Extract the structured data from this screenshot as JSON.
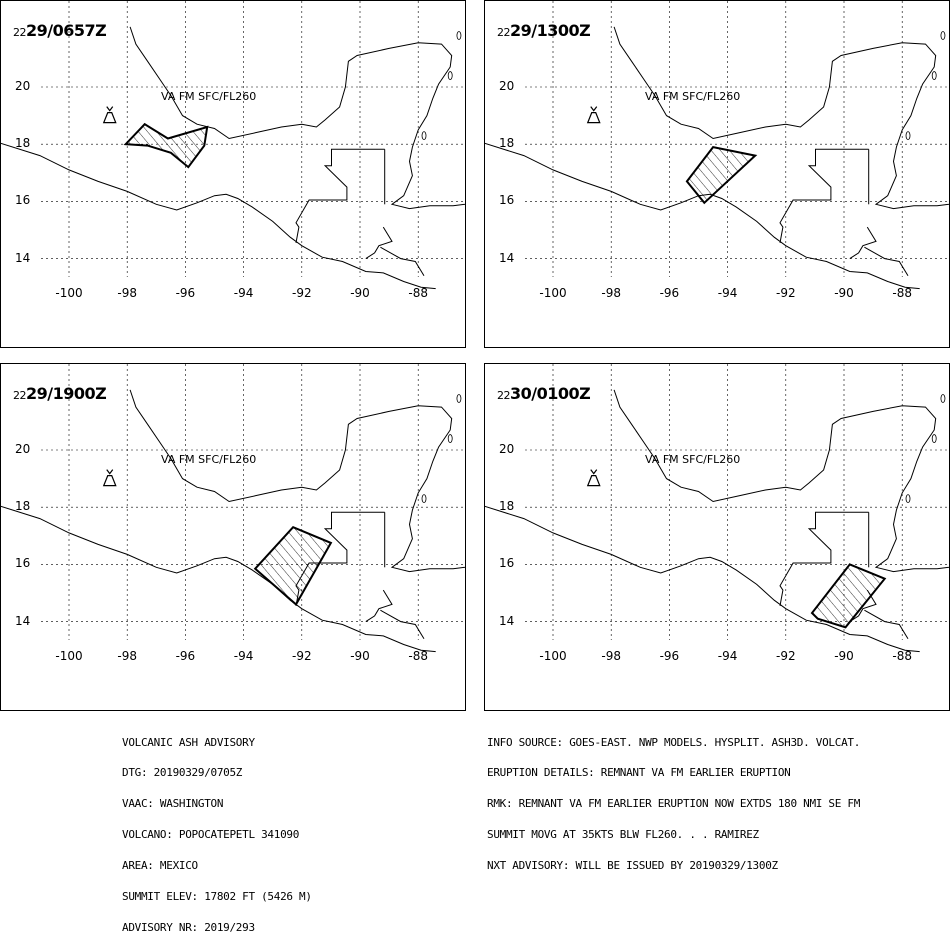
{
  "panels": [
    {
      "day": "22",
      "time": "29/0657Z",
      "va_label": "VA FM SFC/FL260",
      "polygon": [
        [
          -98.05,
          18.0
        ],
        [
          -97.4,
          18.7
        ],
        [
          -96.6,
          18.2
        ],
        [
          -95.25,
          18.6
        ],
        [
          -95.35,
          17.95
        ],
        [
          -95.9,
          17.2
        ],
        [
          -96.5,
          17.7
        ],
        [
          -97.3,
          17.95
        ]
      ]
    },
    {
      "day": "22",
      "time": "29/1300Z",
      "va_label": "VA FM SFC/FL260",
      "polygon": [
        [
          -94.5,
          17.9
        ],
        [
          -93.05,
          17.6
        ],
        [
          -94.8,
          15.95
        ],
        [
          -95.4,
          16.7
        ]
      ]
    },
    {
      "day": "22",
      "time": "29/1900Z",
      "va_label": "VA FM SFC/FL260",
      "polygon": [
        [
          -92.3,
          17.3
        ],
        [
          -91.0,
          16.75
        ],
        [
          -92.2,
          14.6
        ],
        [
          -93.6,
          15.85
        ]
      ]
    },
    {
      "day": "22",
      "time": "30/0100Z",
      "va_label": "VA FM SFC/FL260",
      "polygon": [
        [
          -89.8,
          16.0
        ],
        [
          -88.6,
          15.5
        ],
        [
          -89.95,
          13.8
        ],
        [
          -90.9,
          14.1
        ],
        [
          -91.1,
          14.3
        ]
      ]
    }
  ],
  "map": {
    "lon_ticks": [
      "-100",
      "-98",
      "-96",
      "-94",
      "-92",
      "-90",
      "-88"
    ],
    "lon_values": [
      -100,
      -98,
      -96,
      -94,
      -92,
      -90,
      -88
    ],
    "lat_ticks": [
      "20",
      "18",
      "16",
      "14"
    ],
    "lat_values": [
      20,
      18,
      16,
      14
    ],
    "volcano": {
      "name": "POPOCATEPETL",
      "lon": -98.6,
      "lat": 19.0
    },
    "grid": "dashed"
  },
  "advisory_left": [
    "VOLCANIC ASH ADVISORY",
    "DTG: 20190329/0705Z",
    "VAAC: WASHINGTON",
    "VOLCANO: POPOCATEPETL 341090",
    "AREA: MEXICO",
    "SUMMIT ELEV: 17802 FT (5426 M)",
    "ADVISORY NR: 2019/293"
  ],
  "advisory_right": [
    "INFO SOURCE: GOES-EAST. NWP MODELS. HYSPLIT. ASH3D. VOLCAT.",
    "ERUPTION DETAILS: REMNANT VA FM EARLIER ERUPTION",
    "RMK: REMNANT VA FM EARLIER ERUPTION NOW EXTDS 180 NMI SE FM",
    "SUMMIT MOVG AT 35KTS BLW FL260. . . RAMIREZ",
    "NXT ADVISORY: WILL BE ISSUED BY 20190329/1300Z"
  ]
}
